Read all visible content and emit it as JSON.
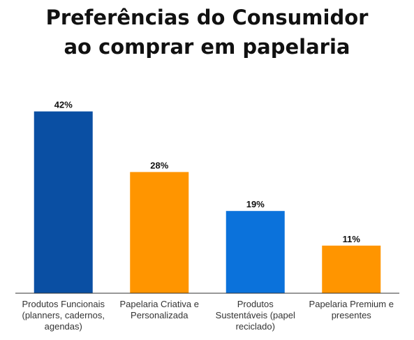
{
  "title": {
    "line1": "Preferências do Consumidor",
    "line2": "ao comprar em papelaria"
  },
  "colors": {
    "dark_blue": "#0A4FA3",
    "orange": "#FF9500",
    "bright_blue": "#0B72DB",
    "axis": "#333333"
  },
  "chart_data": {
    "type": "bar",
    "title": "Preferências do Consumidor ao comprar em papelaria",
    "xlabel": "",
    "ylabel": "",
    "ylim": [
      0,
      50
    ],
    "grid": false,
    "legend": "none",
    "categories": [
      [
        "Produtos Funcionais",
        "(planners, cadernos,",
        "agendas)"
      ],
      [
        "Papelaria Criativa e",
        "Personalizada"
      ],
      [
        "Produtos",
        "Sustentáveis (papel",
        "reciclado)"
      ],
      [
        "Papelaria Premium e",
        "presentes"
      ]
    ],
    "values": [
      42,
      28,
      19,
      11
    ],
    "value_labels": [
      "42%",
      "28%",
      "19%",
      "11%"
    ],
    "bar_colors": [
      "#0A4FA3",
      "#FF9500",
      "#0B72DB",
      "#FF9500"
    ]
  }
}
